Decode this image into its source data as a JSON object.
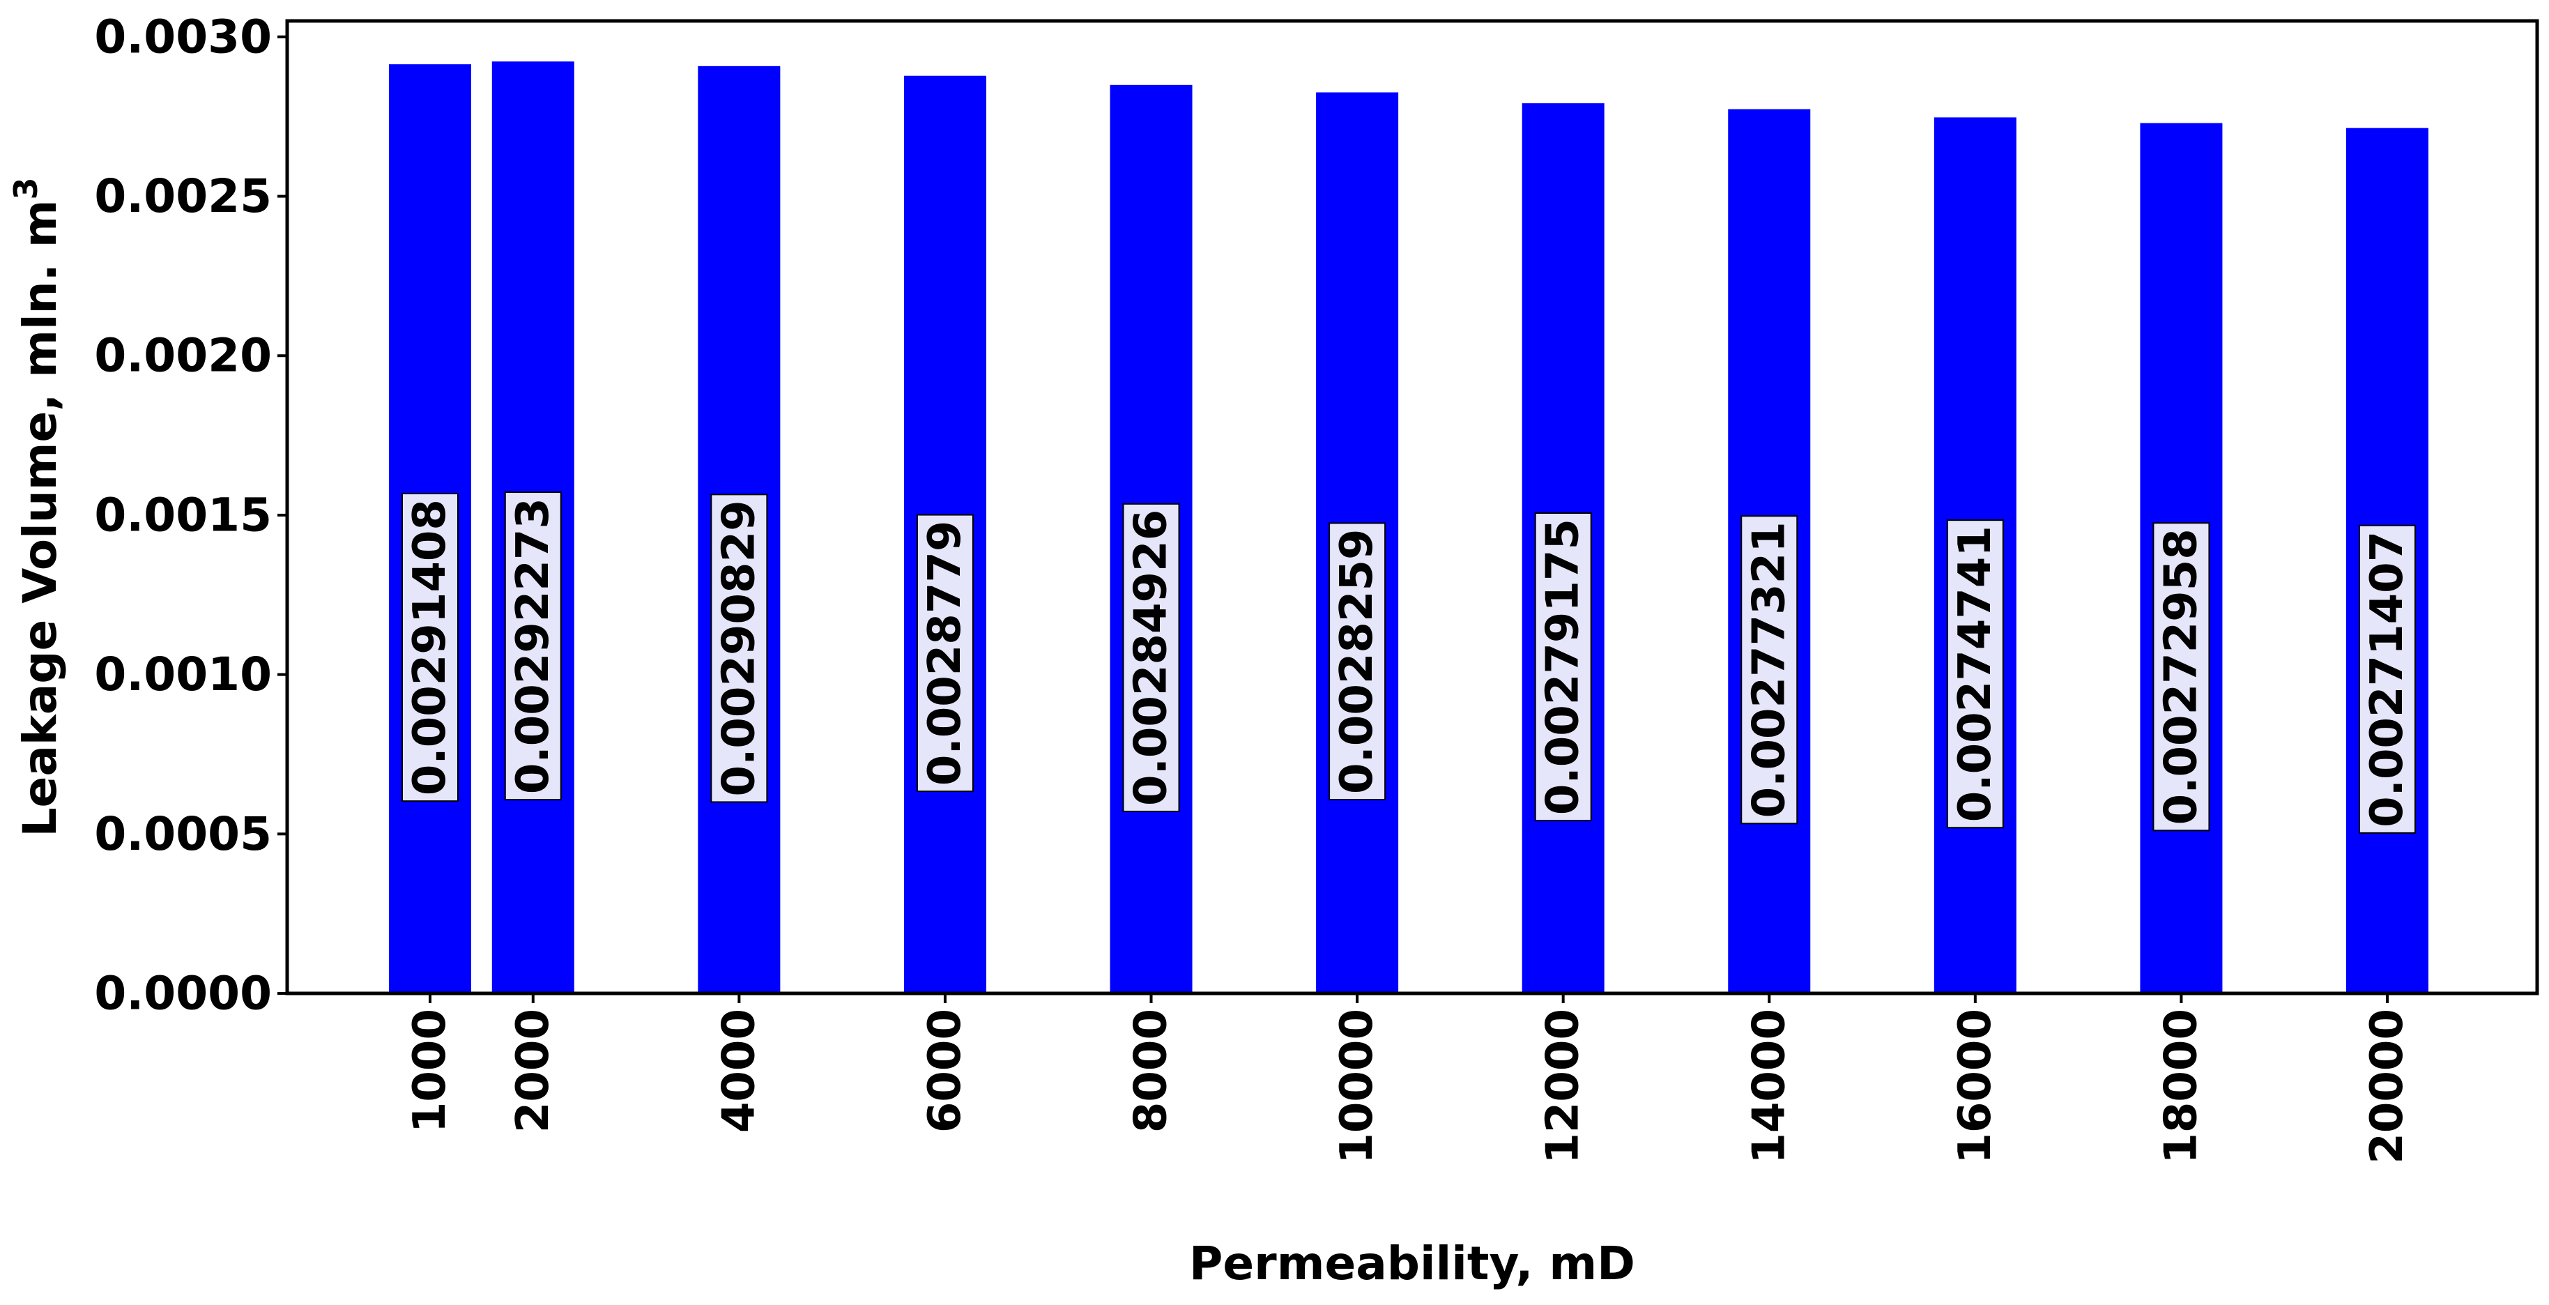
{
  "chart_data": {
    "type": "bar",
    "title": "",
    "xlabel": "Permeability, mD",
    "ylabel_text": "Leakage Volume, mln. m",
    "ylabel_superscript": "3",
    "x": [
      1000,
      2000,
      4000,
      6000,
      8000,
      10000,
      12000,
      14000,
      16000,
      18000,
      20000
    ],
    "categories": [
      "1000",
      "2000",
      "4000",
      "6000",
      "8000",
      "10000",
      "12000",
      "14000",
      "16000",
      "18000",
      "20000"
    ],
    "values": [
      0.00291408,
      0.00292273,
      0.00290829,
      0.0028779,
      0.00284926,
      0.0028259,
      0.00279175,
      0.00277321,
      0.00274741,
      0.00272958,
      0.00271407
    ],
    "value_labels": [
      "0.00291408",
      "0.00292273",
      "0.00290829",
      "0.0028779",
      "0.00284926",
      "0.0028259",
      "0.00279175",
      "0.00277321",
      "0.00274741",
      "0.00272958",
      "0.00271407"
    ],
    "yticks": [
      "0.0000",
      "0.0005",
      "0.0010",
      "0.0015",
      "0.0020",
      "0.0025",
      "0.0030"
    ],
    "ytick_values": [
      0,
      0.0005,
      0.001,
      0.0015,
      0.002,
      0.0025,
      0.003
    ],
    "ylim": [
      0,
      0.00305
    ],
    "xlim": [
      -1,
      21000
    ],
    "grid": false,
    "legend": "none",
    "bar_color": "#0000ff",
    "label_box_color": "#e6e6fa"
  }
}
